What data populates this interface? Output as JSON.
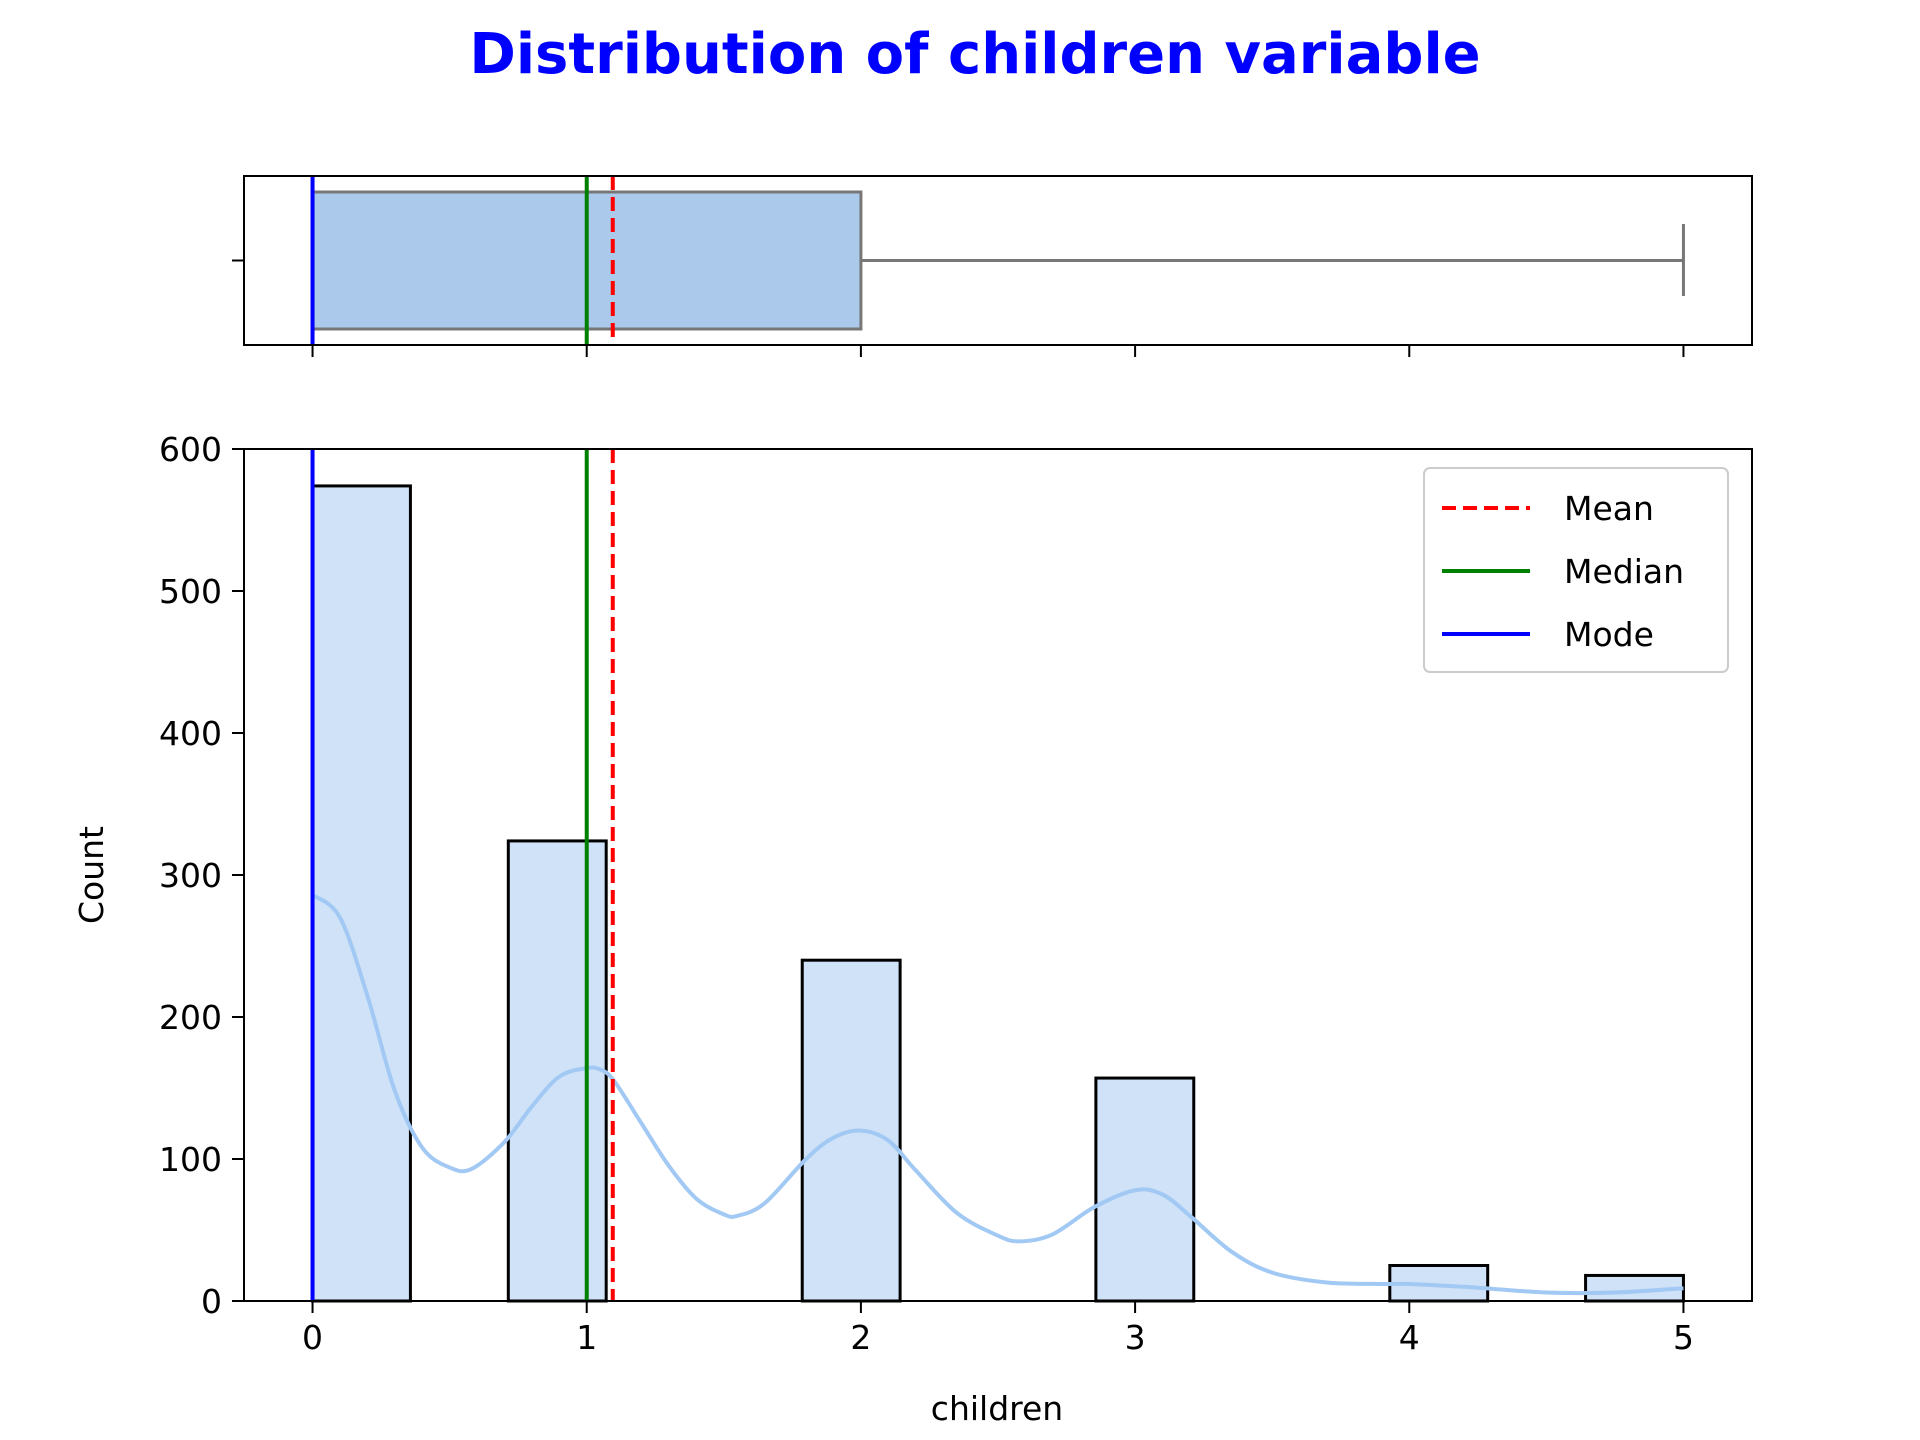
{
  "chart_data": [
    {
      "type": "box",
      "panel": "boxplot",
      "variable": "children",
      "min": 0,
      "q1": 0,
      "median": 1,
      "q3": 2,
      "max": 5,
      "mean": 1.095,
      "mode": 0,
      "xlim": [
        -0.25,
        5.25
      ],
      "box_color": "#abc9ea",
      "box_edge_color": "#777777"
    },
    {
      "type": "bar",
      "panel": "histogram",
      "title": "Distribution of children variable",
      "xlabel": "children",
      "ylabel": "Count",
      "xlim": [
        -0.25,
        5.25
      ],
      "ylim": [
        0,
        600
      ],
      "x_ticks": [
        "0",
        "1",
        "2",
        "3",
        "4",
        "5"
      ],
      "y_ticks": [
        "0",
        "100",
        "200",
        "300",
        "400",
        "500",
        "600"
      ],
      "bins": [
        {
          "x0": 0.0,
          "x1": 0.357,
          "count": 574
        },
        {
          "x0": 0.714,
          "x1": 1.071,
          "count": 324
        },
        {
          "x0": 1.786,
          "x1": 2.143,
          "count": 240
        },
        {
          "x0": 2.857,
          "x1": 3.214,
          "count": 157
        },
        {
          "x0": 3.929,
          "x1": 4.286,
          "count": 25
        },
        {
          "x0": 4.643,
          "x1": 5.0,
          "count": 18
        }
      ],
      "kde": {
        "x": [
          0,
          0.1,
          0.2,
          0.3,
          0.4,
          0.5,
          0.58,
          0.7,
          0.8,
          0.9,
          1.0,
          1.05,
          1.1,
          1.2,
          1.3,
          1.4,
          1.5,
          1.55,
          1.65,
          1.8,
          1.9,
          2.0,
          2.1,
          2.2,
          2.35,
          2.5,
          2.58,
          2.7,
          2.85,
          3.0,
          3.1,
          3.2,
          3.35,
          3.5,
          3.7,
          3.9,
          4.0,
          4.2,
          4.5,
          4.75,
          5.0
        ],
        "y": [
          286,
          270,
          215,
          148,
          108,
          94,
          93,
          112,
          137,
          158,
          164,
          163,
          155,
          125,
          95,
          72,
          61,
          60,
          69,
          100,
          115,
          120,
          113,
          92,
          62,
          46,
          42,
          47,
          66,
          78,
          75,
          60,
          35,
          20,
          13,
          12,
          12,
          10,
          6,
          6,
          9
        ]
      },
      "kde_color": "#a1c9f4",
      "bar_color": "#cfe2f7",
      "lines": [
        {
          "name": "Mean",
          "x": 1.095,
          "color": "#ff0000",
          "style": "dashed"
        },
        {
          "name": "Median",
          "x": 1,
          "color": "#008000",
          "style": "solid"
        },
        {
          "name": "Mode",
          "x": 0,
          "color": "#0000ff",
          "style": "solid"
        }
      ],
      "legend_position": "top-right"
    }
  ]
}
